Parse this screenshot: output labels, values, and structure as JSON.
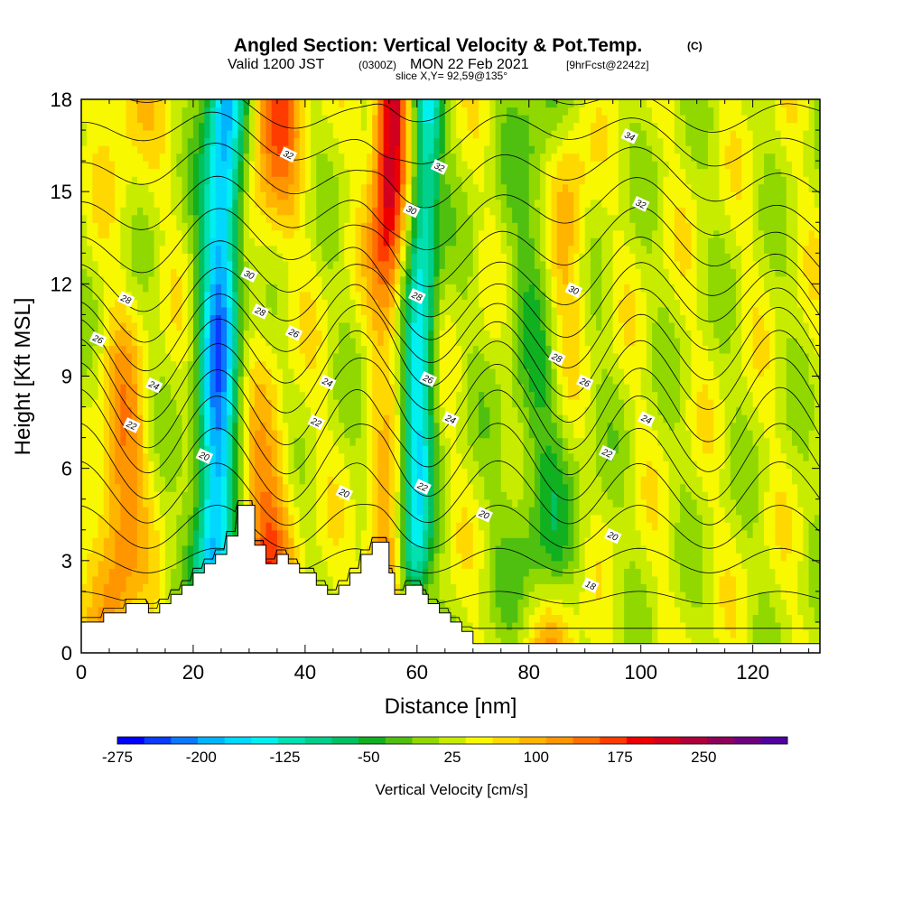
{
  "title": {
    "main": "Angled Section: Vertical Velocity & Pot.Temp.",
    "main_unit": "(C)",
    "valid_prefix": "Valid 1200 JST",
    "valid_z": "(0300Z)",
    "valid_date": "MON 22 Feb 2021",
    "forecast": "[9hrFcst@2242z]",
    "slice": "slice X,Y= 92,59@135°"
  },
  "axes": {
    "xlabel": "Distance [nm]",
    "ylabel": "Height [Kft MSL]",
    "xlim": [
      0,
      132
    ],
    "ylim": [
      0,
      18
    ],
    "x_ticks": [
      "0",
      "20",
      "40",
      "60",
      "80",
      "100",
      "120"
    ],
    "y_ticks": [
      "0",
      "3",
      "6",
      "9",
      "12",
      "15",
      "18"
    ]
  },
  "colorbar": {
    "label": "Vertical Velocity [cm/s]",
    "ticks": [
      "-275",
      "-200",
      "-125",
      "-50",
      "25",
      "100",
      "175",
      "250"
    ],
    "colors": [
      "#0000ff",
      "#0a3cff",
      "#0a78ff",
      "#00b4ff",
      "#00d8ff",
      "#00f0f0",
      "#00e0b0",
      "#00d08c",
      "#00c060",
      "#10b020",
      "#50c010",
      "#90d800",
      "#c8ec00",
      "#f8f800",
      "#ffd800",
      "#ffb400",
      "#ff9600",
      "#ff6e00",
      "#ff3c00",
      "#ee0000",
      "#d0001e",
      "#b0003c",
      "#90005a",
      "#700080",
      "#5000a0"
    ]
  },
  "chart_data": {
    "type": "heatmap",
    "title": "Angled Section: Vertical Velocity & Pot.Temp.",
    "xlabel": "Distance [nm]",
    "ylabel": "Height [Kft MSL]",
    "xlim": [
      0,
      132
    ],
    "ylim": [
      0,
      18
    ],
    "fill_variable": "Vertical Velocity [cm/s]",
    "color_scale": [
      -275,
      325
    ],
    "updraft_bands": [
      {
        "x": 7,
        "w": 3,
        "peak": 110
      },
      {
        "x": 33,
        "w": 3.5,
        "peak": 140
      },
      {
        "x": 54,
        "w": 2.2,
        "peak": 220
      },
      {
        "x": 86,
        "w": 3,
        "peak": 120
      }
    ],
    "downdraft_bands": [
      {
        "x": 24,
        "w": 2.5,
        "peak": -230
      },
      {
        "x": 60,
        "w": 2,
        "peak": -170
      },
      {
        "x": 83,
        "w": 5,
        "peak": -70
      }
    ],
    "terrain": [
      [
        0,
        1
      ],
      [
        4,
        1
      ],
      [
        4,
        1.3
      ],
      [
        8,
        1.3
      ],
      [
        8,
        1.6
      ],
      [
        12,
        1.6
      ],
      [
        12,
        1.3
      ],
      [
        14,
        1.3
      ],
      [
        14,
        1.6
      ],
      [
        16,
        1.6
      ],
      [
        16,
        1.9
      ],
      [
        18,
        1.9
      ],
      [
        18,
        2.2
      ],
      [
        20,
        2.2
      ],
      [
        20,
        2.6
      ],
      [
        22,
        2.6
      ],
      [
        22,
        2.9
      ],
      [
        24,
        2.9
      ],
      [
        24,
        3.2
      ],
      [
        26,
        3.2
      ],
      [
        26,
        3.8
      ],
      [
        28,
        3.8
      ],
      [
        28,
        4.8
      ],
      [
        31,
        4.8
      ],
      [
        31,
        3.5
      ],
      [
        33,
        3.5
      ],
      [
        33,
        2.9
      ],
      [
        35,
        2.9
      ],
      [
        35,
        3.2
      ],
      [
        37,
        3.2
      ],
      [
        37,
        2.9
      ],
      [
        39,
        2.9
      ],
      [
        39,
        2.6
      ],
      [
        42,
        2.6
      ],
      [
        42,
        2.2
      ],
      [
        44,
        2.2
      ],
      [
        44,
        1.9
      ],
      [
        46,
        1.9
      ],
      [
        46,
        2.2
      ],
      [
        48,
        2.2
      ],
      [
        48,
        2.6
      ],
      [
        50,
        2.6
      ],
      [
        50,
        3.2
      ],
      [
        52,
        3.2
      ],
      [
        52,
        3.6
      ],
      [
        55,
        3.6
      ],
      [
        55,
        2.6
      ],
      [
        56,
        2.6
      ],
      [
        56,
        1.9
      ],
      [
        58,
        1.9
      ],
      [
        58,
        2.2
      ],
      [
        61,
        2.2
      ],
      [
        61,
        1.9
      ],
      [
        62,
        1.9
      ],
      [
        62,
        1.6
      ],
      [
        64,
        1.6
      ],
      [
        64,
        1.3
      ],
      [
        66,
        1.3
      ],
      [
        66,
        1
      ],
      [
        68,
        1
      ],
      [
        68,
        0.7
      ],
      [
        70,
        0.7
      ],
      [
        70,
        0.3
      ],
      [
        132,
        0.3
      ]
    ],
    "theta_contours": [
      {
        "value": 18,
        "h": 0.8,
        "a": 0.0,
        "b": 0.0
      },
      {
        "value": 19,
        "h": 1.8,
        "a": 0.2,
        "b": 0.0
      },
      {
        "value": 20,
        "h": 3.0,
        "a": 0.4,
        "b": 0.0
      },
      {
        "value": 21,
        "h": 4.1,
        "a": 0.7,
        "b": 0.0
      },
      {
        "value": 22,
        "h": 5.2,
        "a": 1.0,
        "b": 0.05
      },
      {
        "value": 23,
        "h": 6.2,
        "a": 1.2,
        "b": 0.1
      },
      {
        "value": 24,
        "h": 7.2,
        "a": 1.3,
        "b": 0.15
      },
      {
        "value": 25,
        "h": 8.1,
        "a": 1.3,
        "b": 0.2
      },
      {
        "value": 26,
        "h": 9.0,
        "a": 1.25,
        "b": 0.25
      },
      {
        "value": 27,
        "h": 9.8,
        "a": 1.2,
        "b": 0.3
      },
      {
        "value": 28,
        "h": 10.6,
        "a": 1.1,
        "b": 0.35
      },
      {
        "value": 29,
        "h": 11.4,
        "a": 1.0,
        "b": 0.4
      },
      {
        "value": 30,
        "h": 12.2,
        "a": 0.9,
        "b": 0.45
      },
      {
        "value": 31,
        "h": 13.2,
        "a": 0.8,
        "b": 0.5
      },
      {
        "value": 32,
        "h": 14.3,
        "a": 0.7,
        "b": 0.5
      },
      {
        "value": 33,
        "h": 15.5,
        "a": 0.6,
        "b": 0.5
      },
      {
        "value": 34,
        "h": 16.7,
        "a": 0.5,
        "b": 0.5
      },
      {
        "value": 35,
        "h": 17.8,
        "a": 0.4,
        "b": 0.5
      }
    ],
    "contour_labels": [
      {
        "text": "18",
        "x": 91,
        "y": 2.2
      },
      {
        "text": "20",
        "x": 72,
        "y": 4.5
      },
      {
        "text": "20",
        "x": 47,
        "y": 5.2
      },
      {
        "text": "20",
        "x": 22,
        "y": 6.4
      },
      {
        "text": "20",
        "x": 95,
        "y": 3.8
      },
      {
        "text": "22",
        "x": 9,
        "y": 7.4
      },
      {
        "text": "22",
        "x": 42,
        "y": 7.5
      },
      {
        "text": "22",
        "x": 61,
        "y": 5.4
      },
      {
        "text": "22",
        "x": 94,
        "y": 6.5
      },
      {
        "text": "24",
        "x": 13,
        "y": 8.7
      },
      {
        "text": "24",
        "x": 44,
        "y": 8.8
      },
      {
        "text": "24",
        "x": 66,
        "y": 7.6
      },
      {
        "text": "24",
        "x": 101,
        "y": 7.6
      },
      {
        "text": "26",
        "x": 3,
        "y": 10.2
      },
      {
        "text": "26",
        "x": 38,
        "y": 10.4
      },
      {
        "text": "26",
        "x": 62,
        "y": 8.9
      },
      {
        "text": "26",
        "x": 90,
        "y": 8.8
      },
      {
        "text": "28",
        "x": 8,
        "y": 11.5
      },
      {
        "text": "28",
        "x": 32,
        "y": 11.1
      },
      {
        "text": "28",
        "x": 60,
        "y": 11.6
      },
      {
        "text": "28",
        "x": 85,
        "y": 9.6
      },
      {
        "text": "30",
        "x": 30,
        "y": 12.3
      },
      {
        "text": "30",
        "x": 59,
        "y": 14.4
      },
      {
        "text": "30",
        "x": 88,
        "y": 11.8
      },
      {
        "text": "32",
        "x": 37,
        "y": 16.2
      },
      {
        "text": "32",
        "x": 64,
        "y": 15.8
      },
      {
        "text": "32",
        "x": 100,
        "y": 14.6
      },
      {
        "text": "34",
        "x": 98,
        "y": 16.8
      }
    ]
  }
}
